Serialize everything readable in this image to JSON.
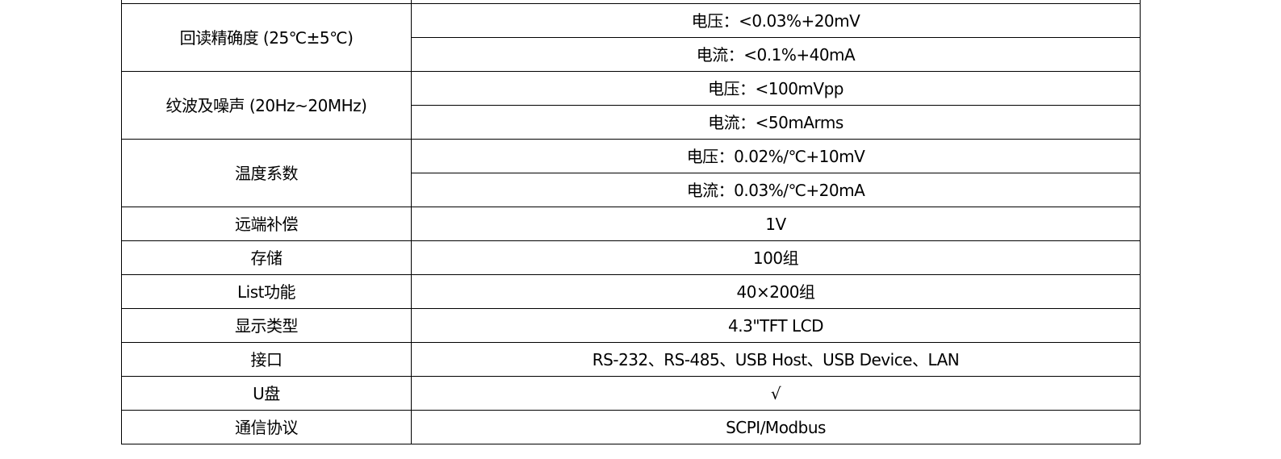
{
  "rows": [
    {
      "label": "回读精确度 (25℃±5℃)",
      "values": [
        "电压：<0.03%+20mV",
        "电流：<0.1%+40mA"
      ]
    },
    {
      "label": "纹波及噪声 (20Hz~20MHz)",
      "values": [
        "电压：<100mVpp",
        "电流：<50mArms"
      ]
    },
    {
      "label": "温度系数",
      "values": [
        "电压：0.02%/℃+10mV",
        "电流：0.03%/℃+20mA"
      ]
    },
    {
      "label": "远端补偿",
      "values": [
        "1V"
      ]
    },
    {
      "label": "存储",
      "values": [
        "100组"
      ]
    },
    {
      "label": "List功能",
      "values": [
        "40×200组"
      ]
    },
    {
      "label": "显示类型",
      "values": [
        "4.3\"TFT LCD"
      ]
    },
    {
      "label": "接口",
      "values": [
        "RS-232、RS-485、USB Host、USB Device、LAN"
      ]
    },
    {
      "label": "U盘",
      "values": [
        "√"
      ]
    },
    {
      "label": "通信协议",
      "values": [
        "SCPI/Modbus"
      ]
    }
  ]
}
